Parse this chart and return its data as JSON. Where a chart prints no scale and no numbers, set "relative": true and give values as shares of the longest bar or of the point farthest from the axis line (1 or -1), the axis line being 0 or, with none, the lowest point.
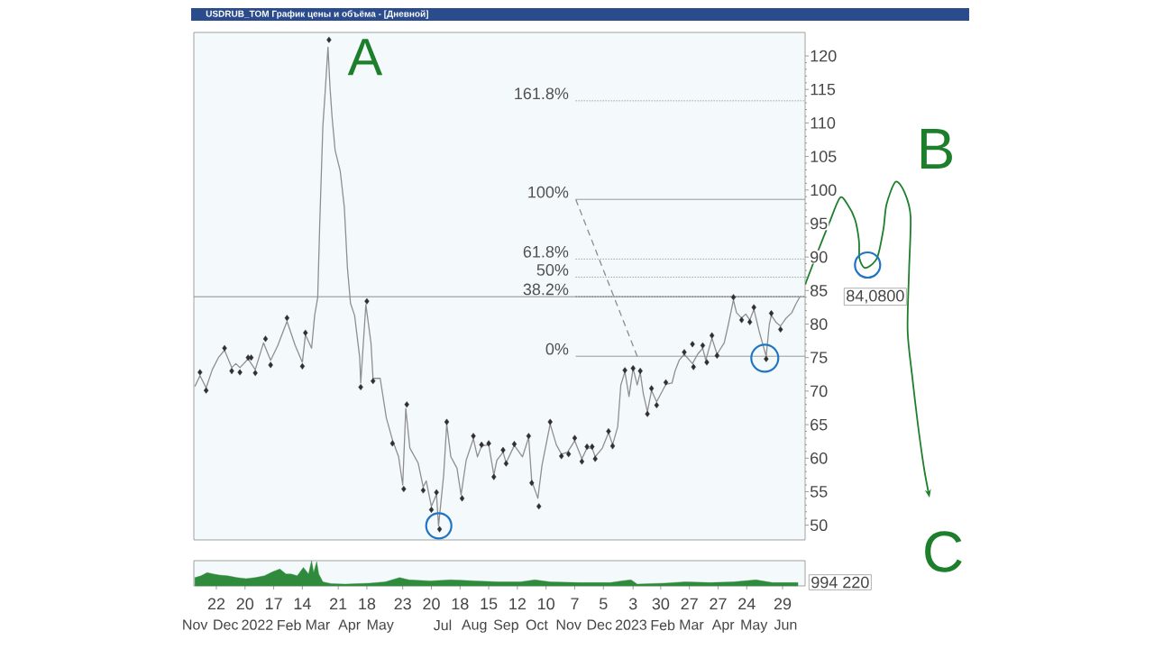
{
  "chart_data": [
    {
      "type": "line",
      "title": "USDRUB_TOM График цены и объёма - [Дневной]",
      "series": [
        {
          "type": "line",
          "color": "#8f8f8f",
          "x": [
            "2021-11-01",
            "2021-11-06",
            "2021-11-12",
            "2021-11-18",
            "2021-11-24",
            "2021-11-30",
            "2021-12-07",
            "2021-12-11",
            "2021-12-15",
            "2021-12-23",
            "2021-12-30",
            "2022-01-07",
            "2022-01-14",
            "2022-01-21",
            "2022-01-30",
            "2022-02-07",
            "2022-02-14",
            "2022-02-17",
            "2022-02-23",
            "2022-02-26",
            "2022-03-01",
            "2022-03-03",
            "2022-03-06",
            "2022-03-08",
            "2022-03-11",
            "2022-03-13",
            "2022-03-15",
            "2022-03-18",
            "2022-03-23",
            "2022-03-27",
            "2022-03-30",
            "2022-04-02",
            "2022-04-06",
            "2022-04-11",
            "2022-04-12",
            "2022-04-17",
            "2022-04-22",
            "2022-04-24",
            "2022-05-01",
            "2022-05-07",
            "2022-05-13",
            "2022-05-19",
            "2022-05-23",
            "2022-05-26",
            "2022-05-30",
            "2022-06-07",
            "2022-06-12",
            "2022-06-15",
            "2022-06-20",
            "2022-06-25",
            "2022-06-27",
            "2022-07-02",
            "2022-07-05",
            "2022-07-09",
            "2022-07-15",
            "2022-07-19",
            "2022-07-24",
            "2022-07-31",
            "2022-08-04",
            "2022-08-08",
            "2022-08-15",
            "2022-08-20",
            "2022-08-23",
            "2022-08-29",
            "2022-09-01",
            "2022-09-09",
            "2022-09-17",
            "2022-09-23",
            "2022-09-26",
            "2022-10-02",
            "2022-10-06",
            "2022-10-14",
            "2022-10-20",
            "2022-10-25",
            "2022-10-31",
            "2022-11-07",
            "2022-11-14",
            "2022-11-19",
            "2022-11-24",
            "2022-11-27",
            "2022-12-04",
            "2022-12-10",
            "2022-12-14",
            "2022-12-19",
            "2022-12-22",
            "2022-12-26",
            "2022-12-30",
            "2023-01-03",
            "2023-01-07",
            "2023-01-10",
            "2023-01-13",
            "2023-01-17",
            "2023-01-21",
            "2023-01-26",
            "2023-02-04",
            "2023-02-10",
            "2023-02-13",
            "2023-02-17",
            "2023-02-22",
            "2023-03-02",
            "2023-03-07",
            "2023-03-12",
            "2023-03-15",
            "2023-03-21",
            "2023-03-26",
            "2023-04-02",
            "2023-04-06",
            "2023-04-11",
            "2023-04-14",
            "2023-04-19",
            "2023-04-23",
            "2023-04-27",
            "2023-05-01",
            "2023-05-06",
            "2023-05-10",
            "2023-05-13",
            "2023-05-16",
            "2023-05-18",
            "2023-05-23",
            "2023-05-27",
            "2023-06-01",
            "2023-06-07",
            "2023-06-11",
            "2023-06-15"
          ],
          "values": [
            70.7,
            72.3,
            70.5,
            73.2,
            75.0,
            76.1,
            73.5,
            74.1,
            73.5,
            74.8,
            73.2,
            77.2,
            74.6,
            76.8,
            80.4,
            76.8,
            74.3,
            78.4,
            76.4,
            81.3,
            84.0,
            95.2,
            109.5,
            114.0,
            121.3,
            115.3,
            110.9,
            105.9,
            102.8,
            97.4,
            88.4,
            83.1,
            81.3,
            75.0,
            71.2,
            82.9,
            77.2,
            71.9,
            71.9,
            66.0,
            62.7,
            60.2,
            56.0,
            67.4,
            61.5,
            59.3,
            55.7,
            56.6,
            52.8,
            54.6,
            49.9,
            57.5,
            65.1,
            60.2,
            58.5,
            54.5,
            59.7,
            62.9,
            60.2,
            61.8,
            62.0,
            57.5,
            59.7,
            60.9,
            59.3,
            61.9,
            60.2,
            63.1,
            56.6,
            54.0,
            58.9,
            65.1,
            62.0,
            60.6,
            60.9,
            62.6,
            59.9,
            61.5,
            61.5,
            60.2,
            61.5,
            63.8,
            62.0,
            64.7,
            70.9,
            72.9,
            69.2,
            73.4,
            70.9,
            72.8,
            69.6,
            66.9,
            70.1,
            68.4,
            71.0,
            71.2,
            73.0,
            74.6,
            75.5,
            74.1,
            75.5,
            76.4,
            74.6,
            77.9,
            75.5,
            77.2,
            79.9,
            83.6,
            81.7,
            80.9,
            81.5,
            80.6,
            82.2,
            79.0,
            76.8,
            75.2,
            79.9,
            81.3,
            80.2,
            79.7,
            80.8,
            81.7,
            83.0,
            84.1
          ]
        },
        {
          "type": "scatter",
          "marker": "diamond",
          "color": "#2f2f2f",
          "x": [
            "2021-11-06",
            "2021-11-12",
            "2021-11-30",
            "2021-12-07",
            "2021-12-15",
            "2021-12-23",
            "2021-12-26",
            "2021-12-30",
            "2022-01-09",
            "2022-01-14",
            "2022-01-30",
            "2022-02-14",
            "2022-02-17",
            "2022-03-12",
            "2022-04-12",
            "2022-04-18",
            "2022-04-24",
            "2022-05-13",
            "2022-05-24",
            "2022-05-27",
            "2022-06-12",
            "2022-06-20",
            "2022-06-25",
            "2022-06-28",
            "2022-07-05",
            "2022-07-20",
            "2022-07-31",
            "2022-08-08",
            "2022-08-15",
            "2022-08-20",
            "2022-08-29",
            "2022-09-01",
            "2022-09-09",
            "2022-09-23",
            "2022-09-26",
            "2022-10-03",
            "2022-10-14",
            "2022-10-25",
            "2022-11-01",
            "2022-11-07",
            "2022-11-14",
            "2022-11-19",
            "2022-11-24",
            "2022-11-27",
            "2022-12-10",
            "2022-12-14",
            "2022-12-26",
            "2023-01-03",
            "2023-01-10",
            "2023-01-17",
            "2023-01-21",
            "2023-01-26",
            "2023-02-04",
            "2023-02-22",
            "2023-03-02",
            "2023-03-03",
            "2023-03-12",
            "2023-03-16",
            "2023-03-21",
            "2023-03-26",
            "2023-04-11",
            "2023-04-19",
            "2023-04-27",
            "2023-05-01",
            "2023-05-13",
            "2023-05-18",
            "2023-05-27"
          ],
          "values": [
            72.8,
            70.1,
            76.4,
            73.0,
            72.8,
            75.0,
            75.0,
            72.7,
            77.8,
            73.9,
            80.9,
            73.7,
            78.7,
            122.4,
            70.6,
            83.4,
            71.5,
            62.2,
            55.4,
            68.0,
            55.2,
            52.3,
            54.9,
            49.4,
            65.4,
            54.0,
            63.3,
            62.0,
            62.2,
            57.2,
            61.2,
            59.2,
            62.1,
            63.3,
            56.3,
            52.8,
            65.4,
            60.3,
            60.6,
            63.0,
            59.5,
            61.7,
            61.7,
            59.9,
            64.0,
            61.8,
            73.1,
            73.4,
            73.0,
            66.6,
            70.4,
            67.9,
            71.3,
            75.8,
            77.0,
            73.6,
            76.8,
            74.3,
            78.3,
            75.3,
            84.0,
            80.6,
            80.3,
            82.5,
            74.8,
            81.6,
            79.2
          ]
        },
        {
          "type": "line",
          "line_style": "dashed",
          "color": "#8c8c8c",
          "x": [
            "2022-11-08",
            "2023-01-07"
          ],
          "values": [
            98.6,
            75.2
          ]
        }
      ],
      "xlim": [
        "2021-10-31",
        "2023-06-20"
      ],
      "ylim": [
        47.8,
        123.5
      ],
      "yticks": [
        50,
        55,
        60,
        65,
        70,
        75,
        80,
        85,
        90,
        95,
        100,
        105,
        110,
        115,
        120
      ],
      "tick_labels": "y",
      "ref_lines": [
        {
          "axis": "y",
          "value": 84.08,
          "label": "84,0800",
          "color": "#808080",
          "line_style": "solid"
        },
        {
          "axis": "y",
          "value": 113.3,
          "color": "#6a6a6a",
          "line_style": "dotted"
        },
        {
          "axis": "y",
          "value": 98.6,
          "color": "#8c8c8c",
          "line_style": "solid"
        },
        {
          "axis": "y",
          "value": 89.7,
          "color": "#6a6a6a",
          "line_style": "dotted"
        },
        {
          "axis": "y",
          "value": 87.0,
          "color": "#6a6a6a",
          "line_style": "dotted"
        },
        {
          "axis": "y",
          "value": 84.1,
          "color": "#3c3c3c",
          "line_style": "dotted"
        },
        {
          "axis": "y",
          "value": 75.2,
          "color": "#8c8c8c",
          "line_style": "solid"
        }
      ],
      "annotations": [
        {
          "text": "A",
          "x": "2022-03-12",
          "y": 122.4
        },
        "B",
        "C",
        {
          "text": "161.8%",
          "x": "2022-11-08",
          "y": 113.3
        },
        {
          "text": "100%",
          "x": "2022-11-08",
          "y": 98.6
        },
        {
          "text": "61.8%",
          "x": "2022-11-08",
          "y": 89.7
        },
        {
          "text": "50%",
          "x": "2022-11-08",
          "y": 87.0
        },
        {
          "text": "38.2%",
          "x": "2022-11-08",
          "y": 84.1
        },
        {
          "text": "0%",
          "x": "2022-11-08",
          "y": 75.2
        }
      ]
    },
    {
      "type": "area",
      "relative": true,
      "color": "#2f8a3c",
      "x": [
        "2021-11-01",
        "2021-11-07",
        "2021-11-13",
        "2021-11-19",
        "2021-11-25",
        "2021-12-03",
        "2021-12-12",
        "2021-12-21",
        "2021-12-30",
        "2022-01-08",
        "2022-01-16",
        "2022-01-23",
        "2022-01-29",
        "2022-02-03",
        "2022-02-09",
        "2022-02-15",
        "2022-02-20",
        "2022-02-23",
        "2022-02-25",
        "2022-02-28",
        "2022-03-02",
        "2022-03-06",
        "2022-03-14",
        "2022-03-28",
        "2022-04-21",
        "2022-05-06",
        "2022-05-20",
        "2022-05-29",
        "2022-06-19",
        "2022-07-09",
        "2022-08-02",
        "2022-08-25",
        "2022-09-15",
        "2022-09-29",
        "2022-10-14",
        "2022-11-12",
        "2022-12-12",
        "2022-12-23",
        "2023-01-01",
        "2023-01-07",
        "2023-02-03",
        "2023-02-23",
        "2023-03-19",
        "2023-04-11",
        "2023-05-03",
        "2023-05-19",
        "2023-06-13"
      ],
      "values": [
        0.33,
        0.4,
        0.53,
        0.47,
        0.43,
        0.4,
        0.33,
        0.29,
        0.33,
        0.4,
        0.56,
        0.67,
        0.47,
        0.47,
        0.4,
        0.73,
        0.47,
        1.0,
        0.53,
        0.96,
        0.47,
        0.16,
        0.09,
        0.07,
        0.11,
        0.16,
        0.33,
        0.24,
        0.2,
        0.24,
        0.2,
        0.16,
        0.16,
        0.24,
        0.16,
        0.13,
        0.13,
        0.2,
        0.24,
        0.07,
        0.11,
        0.16,
        0.13,
        0.16,
        0.24,
        0.13,
        0.13
      ],
      "xlim": [
        "2021-10-31",
        "2023-06-20"
      ],
      "xticks": [
        {
          "value": "2021-11-22",
          "label": "22"
        },
        {
          "value": "2021-12-20",
          "label": "20"
        },
        {
          "value": "2022-01-17",
          "label": "17"
        },
        {
          "value": "2022-02-14",
          "label": "14"
        },
        {
          "value": "2022-03-21",
          "label": "21"
        },
        {
          "value": "2022-04-18",
          "label": "18"
        },
        {
          "value": "2022-05-23",
          "label": "23"
        },
        {
          "value": "2022-06-20",
          "label": "20"
        },
        {
          "value": "2022-07-18",
          "label": "18"
        },
        {
          "value": "2022-08-15",
          "label": "15"
        },
        {
          "value": "2022-09-12",
          "label": "12"
        },
        {
          "value": "2022-10-10",
          "label": "10"
        },
        {
          "value": "2022-11-07",
          "label": "7"
        },
        {
          "value": "2022-12-05",
          "label": "5"
        },
        {
          "value": "2023-01-03",
          "label": "3"
        },
        {
          "value": "2023-01-30",
          "label": "30"
        },
        {
          "value": "2023-02-27",
          "label": "27"
        },
        {
          "value": "2023-03-27",
          "label": "27"
        },
        {
          "value": "2023-04-24",
          "label": "24"
        },
        {
          "value": "2023-05-29",
          "label": "29"
        }
      ],
      "x2lim": [
        "2021-10-31",
        "2023-06-20"
      ],
      "x2ticks": [
        {
          "value": "2021-11-01",
          "label": "Nov"
        },
        {
          "value": "2021-12-01",
          "label": "Dec"
        },
        {
          "value": "2022-01-01",
          "label": "2022"
        },
        {
          "value": "2022-02-01",
          "label": "Feb"
        },
        {
          "value": "2022-03-01",
          "label": "Mar"
        },
        {
          "value": "2022-04-01",
          "label": "Apr"
        },
        {
          "value": "2022-05-01",
          "label": "May"
        },
        {
          "value": "2022-07-01",
          "label": "Jul"
        },
        {
          "value": "2022-08-01",
          "label": "Aug"
        },
        {
          "value": "2022-09-01",
          "label": "Sep"
        },
        {
          "value": "2022-10-01",
          "label": "Oct"
        },
        {
          "value": "2022-11-01",
          "label": "Nov"
        },
        {
          "value": "2022-12-01",
          "label": "Dec"
        },
        {
          "value": "2023-01-01",
          "label": "2023"
        },
        {
          "value": "2023-02-01",
          "label": "Feb"
        },
        {
          "value": "2023-03-01",
          "label": "Mar"
        },
        {
          "value": "2023-04-01",
          "label": "Apr"
        },
        {
          "value": "2023-05-01",
          "label": "May"
        },
        {
          "value": "2023-06-01",
          "label": "Jun"
        }
      ],
      "tick_labels": "x",
      "annotations": [
        "994 220"
      ]
    }
  ]
}
